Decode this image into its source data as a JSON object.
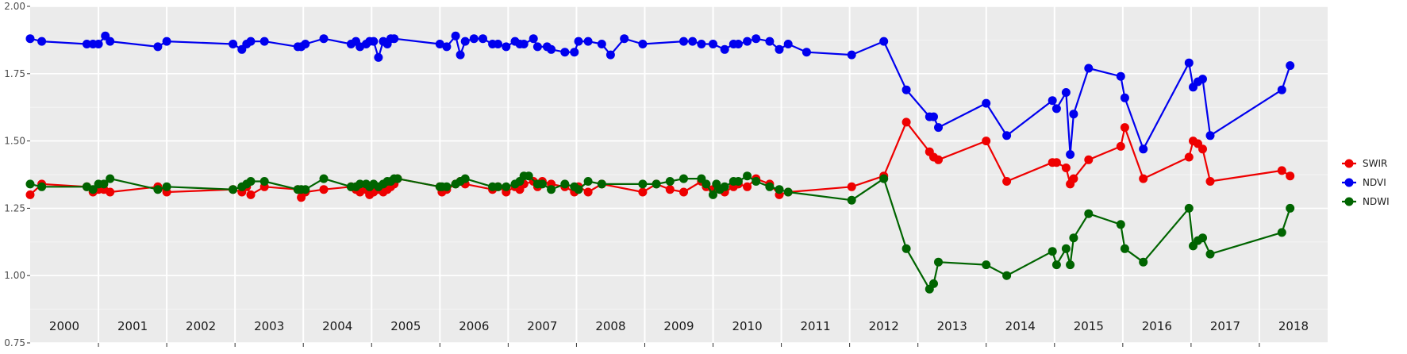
{
  "chart_data": {
    "type": "line",
    "title": "",
    "xlabel": "",
    "ylabel": "",
    "xlim": [
      1999.5,
      2018.5
    ],
    "ylim": [
      0.75,
      2.0
    ],
    "y_ticks": [
      "0.75",
      "1.00",
      "1.25",
      "1.50",
      "1.75",
      "2.00"
    ],
    "y_tick_values": [
      0.75,
      1.0,
      1.25,
      1.5,
      1.75,
      2.0
    ],
    "year_labels": [
      "2000",
      "2001",
      "2002",
      "2003",
      "2004",
      "2005",
      "2006",
      "2007",
      "2008",
      "2009",
      "2010",
      "2011",
      "2012",
      "2013",
      "2014",
      "2015",
      "2016",
      "2017",
      "2018"
    ],
    "grid": true,
    "legend_position": "right",
    "panel_background": "#ebebeb",
    "series": [
      {
        "name": "SWIR",
        "color": "#ee0000",
        "points": [
          [
            1999.5,
            1.3
          ],
          [
            1999.67,
            1.34
          ],
          [
            2000.33,
            1.33
          ],
          [
            2000.42,
            1.31
          ],
          [
            2000.5,
            1.32
          ],
          [
            2000.58,
            1.32
          ],
          [
            2000.67,
            1.31
          ],
          [
            2001.37,
            1.33
          ],
          [
            2001.5,
            1.31
          ],
          [
            2002.47,
            1.32
          ],
          [
            2002.6,
            1.31
          ],
          [
            2002.67,
            1.33
          ],
          [
            2002.73,
            1.3
          ],
          [
            2002.93,
            1.33
          ],
          [
            2003.42,
            1.32
          ],
          [
            2003.47,
            1.29
          ],
          [
            2003.53,
            1.31
          ],
          [
            2003.8,
            1.32
          ],
          [
            2004.2,
            1.33
          ],
          [
            2004.27,
            1.32
          ],
          [
            2004.33,
            1.31
          ],
          [
            2004.42,
            1.32
          ],
          [
            2004.47,
            1.3
          ],
          [
            2004.53,
            1.31
          ],
          [
            2004.6,
            1.32
          ],
          [
            2004.67,
            1.31
          ],
          [
            2004.73,
            1.32
          ],
          [
            2004.78,
            1.33
          ],
          [
            2004.83,
            1.34
          ],
          [
            2004.88,
            1.36
          ],
          [
            2005.5,
            1.33
          ],
          [
            2005.53,
            1.31
          ],
          [
            2005.6,
            1.32
          ],
          [
            2005.73,
            1.34
          ],
          [
            2005.8,
            1.35
          ],
          [
            2005.87,
            1.34
          ],
          [
            2006.27,
            1.32
          ],
          [
            2006.35,
            1.33
          ],
          [
            2006.47,
            1.31
          ],
          [
            2006.6,
            1.33
          ],
          [
            2006.67,
            1.32
          ],
          [
            2006.73,
            1.34
          ],
          [
            2006.87,
            1.35
          ],
          [
            2006.93,
            1.33
          ],
          [
            2007.0,
            1.35
          ],
          [
            2007.13,
            1.34
          ],
          [
            2007.33,
            1.33
          ],
          [
            2007.47,
            1.31
          ],
          [
            2007.53,
            1.33
          ],
          [
            2007.67,
            1.31
          ],
          [
            2007.87,
            1.34
          ],
          [
            2008.47,
            1.31
          ],
          [
            2008.67,
            1.34
          ],
          [
            2008.87,
            1.32
          ],
          [
            2009.07,
            1.31
          ],
          [
            2009.33,
            1.35
          ],
          [
            2009.4,
            1.33
          ],
          [
            2009.5,
            1.32
          ],
          [
            2009.55,
            1.33
          ],
          [
            2009.6,
            1.32
          ],
          [
            2009.67,
            1.31
          ],
          [
            2009.8,
            1.33
          ],
          [
            2009.87,
            1.34
          ],
          [
            2010.0,
            1.33
          ],
          [
            2010.13,
            1.36
          ],
          [
            2010.33,
            1.34
          ],
          [
            2010.47,
            1.3
          ],
          [
            2010.6,
            1.31
          ],
          [
            2011.53,
            1.33
          ],
          [
            2012.0,
            1.37
          ],
          [
            2012.33,
            1.57
          ],
          [
            2012.67,
            1.46
          ],
          [
            2012.73,
            1.44
          ],
          [
            2012.8,
            1.43
          ],
          [
            2013.5,
            1.5
          ],
          [
            2013.8,
            1.35
          ],
          [
            2014.47,
            1.42
          ],
          [
            2014.53,
            1.42
          ],
          [
            2014.67,
            1.4
          ],
          [
            2014.73,
            1.34
          ],
          [
            2014.78,
            1.36
          ],
          [
            2015.0,
            1.43
          ],
          [
            2015.47,
            1.48
          ],
          [
            2015.53,
            1.55
          ],
          [
            2015.8,
            1.36
          ],
          [
            2016.47,
            1.44
          ],
          [
            2016.53,
            1.5
          ],
          [
            2016.6,
            1.49
          ],
          [
            2016.67,
            1.47
          ],
          [
            2016.78,
            1.35
          ],
          [
            2017.83,
            1.39
          ],
          [
            2017.95,
            1.37
          ]
        ]
      },
      {
        "name": "NDVI",
        "color": "#0000ee",
        "points": [
          [
            1999.5,
            1.88
          ],
          [
            1999.67,
            1.87
          ],
          [
            2000.33,
            1.86
          ],
          [
            2000.42,
            1.86
          ],
          [
            2000.5,
            1.86
          ],
          [
            2000.6,
            1.89
          ],
          [
            2000.67,
            1.87
          ],
          [
            2001.37,
            1.85
          ],
          [
            2001.5,
            1.87
          ],
          [
            2002.47,
            1.86
          ],
          [
            2002.6,
            1.84
          ],
          [
            2002.67,
            1.86
          ],
          [
            2002.73,
            1.87
          ],
          [
            2002.93,
            1.87
          ],
          [
            2003.42,
            1.85
          ],
          [
            2003.47,
            1.85
          ],
          [
            2003.53,
            1.86
          ],
          [
            2003.8,
            1.88
          ],
          [
            2004.2,
            1.86
          ],
          [
            2004.27,
            1.87
          ],
          [
            2004.33,
            1.85
          ],
          [
            2004.42,
            1.86
          ],
          [
            2004.47,
            1.87
          ],
          [
            2004.53,
            1.87
          ],
          [
            2004.6,
            1.81
          ],
          [
            2004.67,
            1.87
          ],
          [
            2004.73,
            1.86
          ],
          [
            2004.78,
            1.88
          ],
          [
            2004.83,
            1.88
          ],
          [
            2005.5,
            1.86
          ],
          [
            2005.6,
            1.85
          ],
          [
            2005.73,
            1.89
          ],
          [
            2005.8,
            1.82
          ],
          [
            2005.87,
            1.87
          ],
          [
            2006.0,
            1.88
          ],
          [
            2006.13,
            1.88
          ],
          [
            2006.27,
            1.86
          ],
          [
            2006.35,
            1.86
          ],
          [
            2006.47,
            1.85
          ],
          [
            2006.6,
            1.87
          ],
          [
            2006.67,
            1.86
          ],
          [
            2006.73,
            1.86
          ],
          [
            2006.87,
            1.88
          ],
          [
            2006.93,
            1.85
          ],
          [
            2007.07,
            1.85
          ],
          [
            2007.13,
            1.84
          ],
          [
            2007.33,
            1.83
          ],
          [
            2007.47,
            1.83
          ],
          [
            2007.53,
            1.87
          ],
          [
            2007.67,
            1.87
          ],
          [
            2007.87,
            1.86
          ],
          [
            2008.0,
            1.82
          ],
          [
            2008.2,
            1.88
          ],
          [
            2008.47,
            1.86
          ],
          [
            2009.07,
            1.87
          ],
          [
            2009.2,
            1.87
          ],
          [
            2009.33,
            1.86
          ],
          [
            2009.5,
            1.86
          ],
          [
            2009.67,
            1.84
          ],
          [
            2009.8,
            1.86
          ],
          [
            2009.87,
            1.86
          ],
          [
            2010.0,
            1.87
          ],
          [
            2010.13,
            1.88
          ],
          [
            2010.33,
            1.87
          ],
          [
            2010.47,
            1.84
          ],
          [
            2010.6,
            1.86
          ],
          [
            2010.87,
            1.83
          ],
          [
            2011.53,
            1.82
          ],
          [
            2012.0,
            1.87
          ],
          [
            2012.33,
            1.69
          ],
          [
            2012.67,
            1.59
          ],
          [
            2012.73,
            1.59
          ],
          [
            2012.8,
            1.55
          ],
          [
            2013.5,
            1.64
          ],
          [
            2013.8,
            1.52
          ],
          [
            2014.47,
            1.65
          ],
          [
            2014.53,
            1.62
          ],
          [
            2014.67,
            1.68
          ],
          [
            2014.73,
            1.45
          ],
          [
            2014.78,
            1.6
          ],
          [
            2015.0,
            1.77
          ],
          [
            2015.47,
            1.74
          ],
          [
            2015.53,
            1.66
          ],
          [
            2015.8,
            1.47
          ],
          [
            2016.47,
            1.79
          ],
          [
            2016.53,
            1.7
          ],
          [
            2016.6,
            1.72
          ],
          [
            2016.67,
            1.73
          ],
          [
            2016.78,
            1.52
          ],
          [
            2017.83,
            1.69
          ],
          [
            2017.95,
            1.78
          ]
        ]
      },
      {
        "name": "NDWI",
        "color": "#006400",
        "points": [
          [
            1999.5,
            1.34
          ],
          [
            1999.67,
            1.33
          ],
          [
            2000.33,
            1.33
          ],
          [
            2000.42,
            1.32
          ],
          [
            2000.5,
            1.34
          ],
          [
            2000.58,
            1.34
          ],
          [
            2000.67,
            1.36
          ],
          [
            2001.37,
            1.32
          ],
          [
            2001.5,
            1.33
          ],
          [
            2002.47,
            1.32
          ],
          [
            2002.6,
            1.33
          ],
          [
            2002.67,
            1.34
          ],
          [
            2002.73,
            1.35
          ],
          [
            2002.93,
            1.35
          ],
          [
            2003.42,
            1.32
          ],
          [
            2003.47,
            1.32
          ],
          [
            2003.53,
            1.32
          ],
          [
            2003.8,
            1.36
          ],
          [
            2004.2,
            1.33
          ],
          [
            2004.27,
            1.33
          ],
          [
            2004.33,
            1.34
          ],
          [
            2004.42,
            1.34
          ],
          [
            2004.47,
            1.33
          ],
          [
            2004.53,
            1.34
          ],
          [
            2004.6,
            1.33
          ],
          [
            2004.67,
            1.34
          ],
          [
            2004.73,
            1.35
          ],
          [
            2004.78,
            1.35
          ],
          [
            2004.83,
            1.36
          ],
          [
            2004.88,
            1.36
          ],
          [
            2005.5,
            1.33
          ],
          [
            2005.53,
            1.33
          ],
          [
            2005.6,
            1.33
          ],
          [
            2005.73,
            1.34
          ],
          [
            2005.8,
            1.35
          ],
          [
            2005.87,
            1.36
          ],
          [
            2006.27,
            1.33
          ],
          [
            2006.35,
            1.33
          ],
          [
            2006.47,
            1.33
          ],
          [
            2006.6,
            1.34
          ],
          [
            2006.67,
            1.35
          ],
          [
            2006.73,
            1.37
          ],
          [
            2006.8,
            1.37
          ],
          [
            2006.93,
            1.34
          ],
          [
            2007.0,
            1.34
          ],
          [
            2007.13,
            1.32
          ],
          [
            2007.33,
            1.34
          ],
          [
            2007.47,
            1.33
          ],
          [
            2007.53,
            1.32
          ],
          [
            2007.67,
            1.35
          ],
          [
            2007.87,
            1.34
          ],
          [
            2008.47,
            1.34
          ],
          [
            2008.67,
            1.34
          ],
          [
            2008.87,
            1.35
          ],
          [
            2009.07,
            1.36
          ],
          [
            2009.33,
            1.36
          ],
          [
            2009.4,
            1.34
          ],
          [
            2009.5,
            1.3
          ],
          [
            2009.55,
            1.34
          ],
          [
            2009.6,
            1.32
          ],
          [
            2009.67,
            1.33
          ],
          [
            2009.8,
            1.35
          ],
          [
            2009.87,
            1.35
          ],
          [
            2010.0,
            1.37
          ],
          [
            2010.13,
            1.35
          ],
          [
            2010.33,
            1.33
          ],
          [
            2010.47,
            1.32
          ],
          [
            2010.6,
            1.31
          ],
          [
            2011.53,
            1.28
          ],
          [
            2012.0,
            1.36
          ],
          [
            2012.33,
            1.1
          ],
          [
            2012.67,
            0.95
          ],
          [
            2012.73,
            0.97
          ],
          [
            2012.8,
            1.05
          ],
          [
            2013.5,
            1.04
          ],
          [
            2013.8,
            1.0
          ],
          [
            2014.47,
            1.09
          ],
          [
            2014.53,
            1.04
          ],
          [
            2014.67,
            1.1
          ],
          [
            2014.73,
            1.04
          ],
          [
            2014.78,
            1.14
          ],
          [
            2015.0,
            1.23
          ],
          [
            2015.47,
            1.19
          ],
          [
            2015.53,
            1.1
          ],
          [
            2015.8,
            1.05
          ],
          [
            2016.47,
            1.25
          ],
          [
            2016.53,
            1.11
          ],
          [
            2016.6,
            1.13
          ],
          [
            2016.67,
            1.14
          ],
          [
            2016.78,
            1.08
          ],
          [
            2017.83,
            1.16
          ],
          [
            2017.95,
            1.25
          ]
        ]
      }
    ]
  }
}
